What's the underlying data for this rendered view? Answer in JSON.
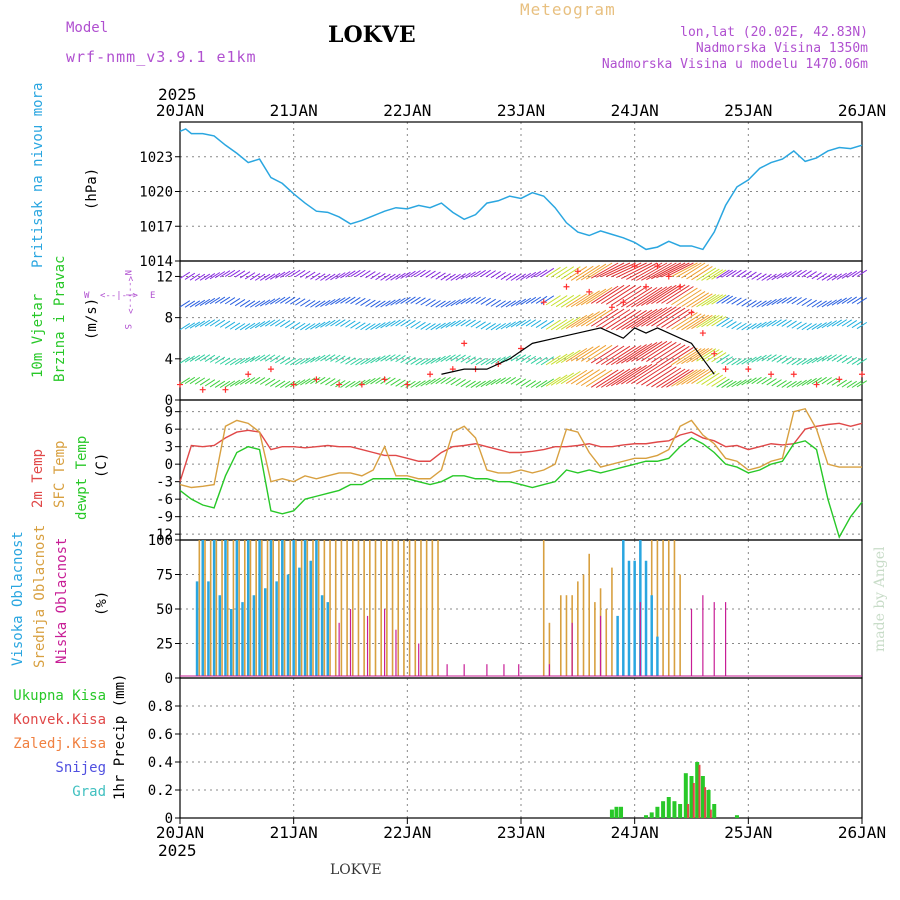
{
  "header": {
    "model_label": "Model",
    "model_name": "wrf-nmm_v3.9.1 e1km",
    "station": "LOKVE",
    "meteogram": "Meteogram",
    "lonlat": "lon,lat (20.02E, 42.83N)",
    "altitude": "Nadmorska Visina 1350m",
    "model_altitude": "Nadmorska Visina u modelu 1470.06m",
    "credit": "made by Angel",
    "footer": "LOKVE"
  },
  "colors": {
    "pressure": "#2aa6e0",
    "temp2m": "#e04848",
    "sfc": "#d8a040",
    "dewpt": "#28c828",
    "high_cloud": "#2aa6e0",
    "mid_cloud": "#d8a040",
    "low_cloud": "#c81e96",
    "title_orange": "#e8c080",
    "purple": "#b050d0"
  },
  "time_axis": {
    "year": "2025",
    "ticks": [
      "20JAN",
      "21JAN",
      "22JAN",
      "23JAN",
      "24JAN",
      "25JAN",
      "26JAN"
    ]
  },
  "wind_labels": {
    "north": "N",
    "south": "S",
    "east": "E",
    "west": "W",
    "arrow_ew": "<--|-->",
    "arrow_ns": "<--|-->"
  },
  "chart_data": [
    {
      "type": "line",
      "ylabel_left": "Pritisak na nivou mora",
      "ylabel_unit": "(hPa)",
      "ylim": [
        1014,
        1026
      ],
      "yticks": [
        1014,
        1017,
        1020,
        1023
      ],
      "grid": true,
      "series": [
        {
          "x": [
            0,
            0.05,
            0.1,
            0.2,
            0.3,
            0.4,
            0.5,
            0.6,
            0.7,
            0.8,
            0.9,
            1.0,
            1.1,
            1.2,
            1.3,
            1.4,
            1.5,
            1.6,
            1.7,
            1.8,
            1.9,
            2.0,
            2.1,
            2.2,
            2.3,
            2.4,
            2.5,
            2.6,
            2.7,
            2.8,
            2.9,
            3.0,
            3.1,
            3.2,
            3.3,
            3.4,
            3.5,
            3.6,
            3.7,
            3.8,
            3.9,
            4.0,
            4.1,
            4.2,
            4.3,
            4.4,
            4.5,
            4.6,
            4.7,
            4.8,
            4.9,
            5.0,
            5.1,
            5.2,
            5.3,
            5.4,
            5.5,
            5.6,
            5.7,
            5.8,
            5.9,
            6.0
          ],
          "values": [
            1025.2,
            1025.4,
            1025.0,
            1025.0,
            1024.8,
            1024.0,
            1023.3,
            1022.5,
            1022.8,
            1021.2,
            1020.7,
            1019.8,
            1019.0,
            1018.3,
            1018.2,
            1017.8,
            1017.2,
            1017.5,
            1017.9,
            1018.3,
            1018.6,
            1018.5,
            1018.8,
            1018.6,
            1019.0,
            1018.2,
            1017.6,
            1018.0,
            1019.0,
            1019.2,
            1019.6,
            1019.4,
            1019.9,
            1019.6,
            1018.6,
            1017.3,
            1016.5,
            1016.2,
            1016.6,
            1016.3,
            1016.0,
            1015.6,
            1015.0,
            1015.2,
            1015.7,
            1015.3,
            1015.3,
            1015.0,
            1016.5,
            1018.8,
            1020.4,
            1021.0,
            1022.0,
            1022.5,
            1022.8,
            1023.5,
            1022.6,
            1022.9,
            1023.5,
            1023.8,
            1023.7,
            1024.0
          ]
        }
      ]
    },
    {
      "type": "scatter",
      "ylabel_left": "10m Vjetar",
      "ylabel_left2": "Brzina i Pravac",
      "ylabel_unit": "(m/s)",
      "ylim": [
        0,
        13.5
      ],
      "yticks": [
        0,
        4,
        8,
        12
      ],
      "grid": true,
      "series": [
        {
          "name": "gust",
          "x": [
            0.0,
            0.2,
            0.4,
            0.6,
            0.8,
            1.0,
            1.2,
            1.4,
            1.6,
            1.8,
            2.0,
            2.2,
            2.4,
            2.5,
            2.6,
            2.8,
            3.0,
            3.2,
            3.4,
            3.5,
            3.6,
            3.8,
            3.9,
            4.0,
            4.1,
            4.2,
            4.3,
            4.4,
            4.5,
            4.6,
            4.7,
            4.8,
            5.0,
            5.2,
            5.4,
            5.6,
            5.8,
            6.0
          ],
          "values": [
            1.5,
            1.0,
            1.0,
            2.5,
            3.0,
            1.5,
            2.0,
            1.5,
            1.5,
            2.0,
            1.5,
            2.5,
            3.0,
            5.5,
            3.0,
            3.5,
            5.0,
            9.5,
            11.0,
            12.5,
            10.5,
            9.0,
            9.5,
            13.0,
            11.0,
            13.0,
            12.0,
            11.0,
            8.5,
            6.5,
            4.5,
            3.0,
            3.0,
            2.5,
            2.5,
            1.5,
            2.0,
            2.5
          ]
        },
        {
          "name": "speed",
          "x": [
            2.3,
            2.5,
            2.7,
            2.9,
            3.1,
            3.3,
            3.5,
            3.7,
            3.9,
            4.0,
            4.1,
            4.2,
            4.3,
            4.5,
            4.6,
            4.7
          ],
          "values": [
            2.5,
            3.0,
            3.0,
            4.0,
            5.5,
            6.0,
            6.5,
            7.0,
            6.0,
            7.0,
            6.5,
            7.0,
            6.5,
            5.5,
            4.0,
            2.5
          ]
        }
      ]
    },
    {
      "type": "line",
      "ylabel_left": "2m Temp",
      "ylabel_left2": "SFC Temp",
      "ylabel_left3": "dewpt Temp",
      "ylabel_unit": "(C)",
      "ylim": [
        -13,
        11
      ],
      "yticks": [
        -12,
        -9,
        -6,
        -3,
        0,
        3,
        6,
        9
      ],
      "grid": true,
      "x": [
        0,
        0.1,
        0.2,
        0.3,
        0.4,
        0.5,
        0.6,
        0.7,
        0.8,
        0.9,
        1.0,
        1.1,
        1.2,
        1.3,
        1.4,
        1.5,
        1.6,
        1.7,
        1.8,
        1.9,
        2.0,
        2.1,
        2.2,
        2.3,
        2.4,
        2.5,
        2.6,
        2.7,
        2.8,
        2.9,
        3.0,
        3.1,
        3.2,
        3.3,
        3.4,
        3.5,
        3.6,
        3.7,
        3.8,
        3.9,
        4.0,
        4.1,
        4.2,
        4.3,
        4.4,
        4.5,
        4.6,
        4.7,
        4.8,
        4.9,
        5.0,
        5.1,
        5.2,
        5.3,
        5.4,
        5.5,
        5.6,
        5.7,
        5.8,
        5.9,
        6.0
      ],
      "series": [
        {
          "name": "2m Temp",
          "values": [
            -3,
            3.2,
            3.0,
            3.2,
            4.5,
            5.5,
            5.8,
            5.5,
            2.5,
            3.0,
            3.0,
            2.8,
            3.0,
            3.2,
            3.0,
            3.0,
            2.5,
            2.0,
            1.5,
            1.5,
            1.0,
            0.5,
            0.5,
            2.0,
            3.0,
            3.2,
            3.5,
            3.0,
            2.5,
            2.0,
            2.0,
            2.2,
            2.5,
            3.0,
            3.0,
            3.2,
            3.5,
            3.0,
            3.0,
            3.3,
            3.5,
            3.5,
            3.8,
            4.0,
            5.0,
            5.5,
            4.5,
            4.0,
            3.0,
            3.2,
            2.5,
            3.0,
            3.5,
            3.3,
            3.5,
            6.0,
            6.5,
            6.8,
            7.0,
            6.5,
            7.0
          ]
        },
        {
          "name": "SFC Temp",
          "values": [
            -3.5,
            -4.0,
            -3.8,
            -3.5,
            6.5,
            7.5,
            7.0,
            5.5,
            -3.0,
            -2.5,
            -3.0,
            -2.0,
            -2.5,
            -2.0,
            -1.5,
            -1.5,
            -2.0,
            -1.0,
            3.0,
            -2.0,
            -2.0,
            -2.5,
            -2.5,
            -1.0,
            5.5,
            6.5,
            4.5,
            -1.0,
            -1.5,
            -1.5,
            -1.0,
            -1.5,
            -1.0,
            0.0,
            6.0,
            5.5,
            2.0,
            -0.5,
            0.0,
            0.5,
            1.0,
            1.0,
            1.5,
            2.5,
            6.5,
            7.5,
            5.0,
            3.5,
            1.0,
            0.5,
            -1.0,
            -0.5,
            0.5,
            1.0,
            9.0,
            9.5,
            6.0,
            0.0,
            -0.5,
            -0.5,
            -0.5
          ]
        },
        {
          "name": "dewpt Temp",
          "values": [
            -4.5,
            -6.0,
            -7.0,
            -7.5,
            -2.0,
            2.0,
            3.0,
            2.5,
            -8.0,
            -8.5,
            -8.0,
            -6.0,
            -5.5,
            -5.0,
            -4.5,
            -3.5,
            -3.5,
            -2.5,
            -2.5,
            -2.5,
            -2.5,
            -3.0,
            -3.5,
            -3.0,
            -2.0,
            -2.0,
            -2.5,
            -2.5,
            -3.0,
            -3.0,
            -3.5,
            -4.0,
            -3.5,
            -3.0,
            -1.0,
            -1.5,
            -1.0,
            -1.5,
            -1.0,
            -0.5,
            0.0,
            0.5,
            0.5,
            1.0,
            3.0,
            4.5,
            3.5,
            2.0,
            0.0,
            -0.5,
            -1.5,
            -1.0,
            0.0,
            0.5,
            3.5,
            4.0,
            2.5,
            -6.0,
            -12.5,
            -9.0,
            -6.5
          ]
        }
      ]
    },
    {
      "type": "bar",
      "ylabel_left": "Visoka Oblacnost",
      "ylabel_left2": "Srednja Oblacnost",
      "ylabel_left3": "Niska Oblacnost",
      "ylabel_unit": "(%)",
      "ylim": [
        0,
        100
      ],
      "yticks": [
        0,
        25,
        50,
        75,
        100
      ],
      "grid": true,
      "series": [
        {
          "name": "Visoka Oblacnost",
          "x": [
            0.15,
            0.2,
            0.25,
            0.3,
            0.35,
            0.4,
            0.45,
            0.5,
            0.55,
            0.6,
            0.65,
            0.7,
            0.75,
            0.8,
            0.85,
            0.9,
            0.95,
            1.0,
            1.05,
            1.1,
            1.15,
            1.2,
            1.25,
            1.3,
            3.85,
            3.9,
            3.95,
            4.0,
            4.05,
            4.1,
            4.15,
            4.2
          ],
          "values": [
            70,
            100,
            70,
            100,
            60,
            100,
            50,
            100,
            55,
            100,
            60,
            100,
            65,
            100,
            70,
            100,
            75,
            100,
            80,
            100,
            85,
            100,
            60,
            55,
            45,
            100,
            85,
            85,
            100,
            85,
            60,
            30
          ]
        },
        {
          "name": "Srednja Oblacnost",
          "x": [
            0.17,
            0.22,
            0.27,
            0.32,
            0.37,
            0.42,
            0.47,
            0.52,
            0.57,
            0.62,
            0.67,
            0.72,
            0.77,
            0.82,
            0.87,
            0.92,
            0.97,
            1.02,
            1.07,
            1.12,
            1.17,
            1.22,
            1.27,
            1.32,
            1.37,
            1.42,
            1.47,
            1.52,
            1.57,
            1.62,
            1.67,
            1.72,
            1.77,
            1.82,
            1.87,
            1.92,
            1.97,
            2.02,
            2.07,
            2.12,
            2.17,
            2.22,
            2.27,
            3.2,
            3.25,
            3.35,
            3.4,
            3.45,
            3.5,
            3.55,
            3.6,
            3.65,
            3.7,
            3.75,
            3.8,
            4.15,
            4.2,
            4.25,
            4.3,
            4.35,
            4.4
          ],
          "values": [
            100,
            100,
            100,
            100,
            100,
            100,
            100,
            100,
            100,
            100,
            100,
            100,
            100,
            100,
            100,
            100,
            100,
            100,
            100,
            100,
            100,
            100,
            100,
            100,
            100,
            100,
            100,
            100,
            100,
            100,
            100,
            100,
            100,
            100,
            100,
            100,
            100,
            100,
            100,
            100,
            100,
            100,
            100,
            100,
            40,
            60,
            60,
            60,
            70,
            75,
            90,
            55,
            65,
            50,
            80,
            100,
            100,
            100,
            100,
            100,
            75
          ]
        },
        {
          "name": "Niska Oblacnost",
          "x": [
            1.4,
            1.5,
            1.65,
            1.8,
            1.9,
            2.1,
            2.35,
            2.5,
            2.7,
            2.85,
            2.98,
            3.25,
            3.45,
            3.7,
            4.05,
            4.5,
            4.6,
            4.7,
            4.8
          ],
          "values": [
            40,
            50,
            45,
            50,
            35,
            25,
            10,
            10,
            10,
            10,
            10,
            10,
            40,
            45,
            55,
            50,
            60,
            55,
            55
          ]
        }
      ]
    },
    {
      "type": "bar",
      "ylabel_left": "1hr Precip (mm)",
      "legend": [
        "Ukupna Kisa",
        "Konvek.Kisa",
        "Zaledj.Kisa",
        "Snijeg",
        "Grad"
      ],
      "legend_colors": [
        "#28c828",
        "#e04848",
        "#f08040",
        "#5050e0",
        "#40c0c0"
      ],
      "ylim": [
        0,
        1.0
      ],
      "yticks": [
        0,
        0.2,
        0.4,
        0.6,
        0.8
      ],
      "grid": true,
      "series": [
        {
          "name": "Ukupna Kisa",
          "x": [
            3.8,
            3.84,
            3.88,
            4.1,
            4.15,
            4.2,
            4.25,
            4.3,
            4.35,
            4.4,
            4.45,
            4.5,
            4.55,
            4.6,
            4.65,
            4.7,
            4.9
          ],
          "values": [
            0.06,
            0.08,
            0.08,
            0.02,
            0.04,
            0.08,
            0.12,
            0.15,
            0.12,
            0.1,
            0.32,
            0.3,
            0.4,
            0.3,
            0.2,
            0.1,
            0.02
          ]
        },
        {
          "name": "Konvek.Kisa",
          "x": [
            4.47,
            4.52,
            4.57,
            4.62,
            4.67
          ],
          "values": [
            0.1,
            0.25,
            0.38,
            0.22,
            0.06
          ]
        }
      ]
    }
  ]
}
